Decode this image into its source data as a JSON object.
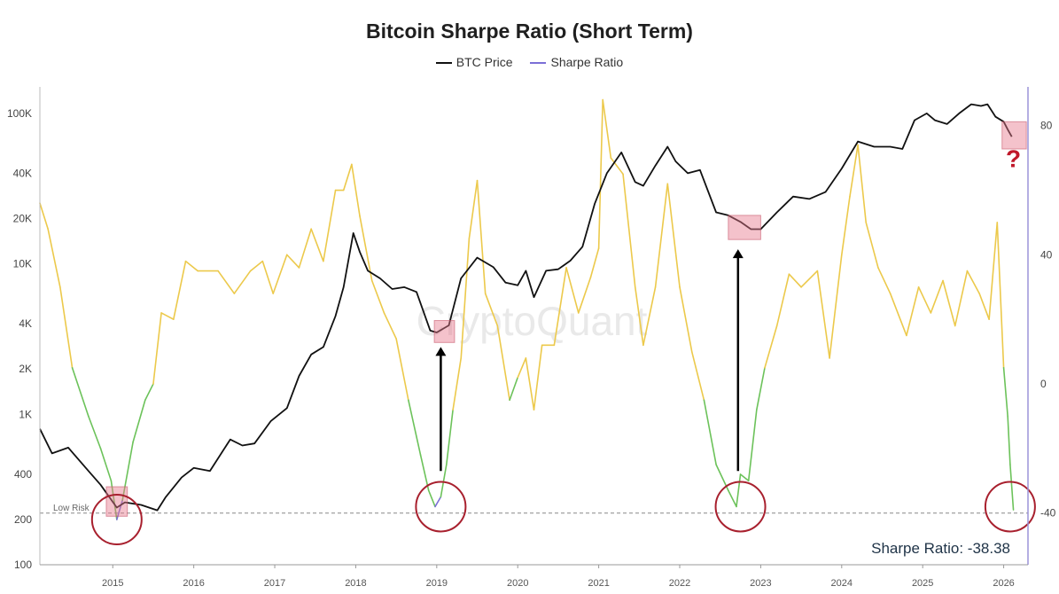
{
  "chart_data": {
    "type": "line",
    "title": "Bitcoin Sharpe Ratio (Short Term)",
    "legend": [
      {
        "name": "BTC Price",
        "color": "#111111"
      },
      {
        "name": "Sharpe Ratio",
        "color": "#7b6fd6"
      }
    ],
    "watermark": "CryptoQuant",
    "x_ticks": [
      "2015",
      "2016",
      "2017",
      "2018",
      "2019",
      "2020",
      "2021",
      "2022",
      "2023",
      "2024",
      "2025",
      "2026"
    ],
    "x_range": [
      2014.1,
      2026.3
    ],
    "y_left": {
      "scale": "log",
      "range": [
        100,
        150000
      ],
      "ticks": [
        100,
        200,
        400,
        1000,
        2000,
        4000,
        10000,
        20000,
        40000,
        100000
      ],
      "tick_labels": [
        "100",
        "200",
        "400",
        "1K",
        "2K",
        "4K",
        "10K",
        "20K",
        "40K",
        "100K"
      ]
    },
    "y_right": {
      "scale": "linear",
      "range": [
        -56,
        92
      ],
      "ticks": [
        80,
        40,
        0,
        -40
      ],
      "tick_labels": [
        "80",
        "40",
        "0",
        "-40"
      ]
    },
    "thresholds": {
      "low": 0,
      "high": 80
    },
    "colors": {
      "green": "#6cc25a",
      "yellow": "#ecc94b",
      "red": "#e06070",
      "purple": "#7b6fd6",
      "price": "#111111"
    },
    "low_risk": {
      "label": "Low Risk",
      "value": -40
    },
    "current_value_label": "Sharpe Ratio: -38.38",
    "question_mark": "?",
    "series": [
      {
        "name": "BTC Price",
        "axis": "left",
        "x": [
          2014.1,
          2014.25,
          2014.45,
          2014.7,
          2014.85,
          2015.05,
          2015.15,
          2015.35,
          2015.55,
          2015.65,
          2015.85,
          2016.0,
          2016.2,
          2016.45,
          2016.6,
          2016.75,
          2016.95,
          2017.15,
          2017.3,
          2017.45,
          2017.6,
          2017.75,
          2017.85,
          2017.97,
          2018.05,
          2018.15,
          2018.3,
          2018.45,
          2018.6,
          2018.75,
          2018.92,
          2019.0,
          2019.15,
          2019.3,
          2019.5,
          2019.7,
          2019.85,
          2020.0,
          2020.1,
          2020.2,
          2020.35,
          2020.5,
          2020.65,
          2020.8,
          2020.95,
          2021.1,
          2021.28,
          2021.45,
          2021.55,
          2021.7,
          2021.85,
          2021.95,
          2022.1,
          2022.25,
          2022.45,
          2022.6,
          2022.75,
          2022.88,
          2023.0,
          2023.2,
          2023.4,
          2023.6,
          2023.8,
          2024.0,
          2024.2,
          2024.4,
          2024.6,
          2024.75,
          2024.9,
          2025.05,
          2025.15,
          2025.3,
          2025.45,
          2025.6,
          2025.72,
          2025.8,
          2025.9,
          2026.0,
          2026.05,
          2026.1
        ],
        "values": [
          800,
          550,
          600,
          420,
          340,
          240,
          260,
          250,
          230,
          280,
          380,
          440,
          420,
          680,
          620,
          640,
          900,
          1100,
          1800,
          2500,
          2800,
          4500,
          7000,
          16000,
          12000,
          9000,
          8000,
          6800,
          7000,
          6500,
          3600,
          3500,
          3900,
          8000,
          11000,
          9500,
          7500,
          7200,
          9000,
          6000,
          9000,
          9200,
          10500,
          13000,
          25000,
          40000,
          55000,
          35000,
          33000,
          45000,
          60000,
          48000,
          40000,
          42000,
          22000,
          21000,
          19000,
          17000,
          17000,
          22000,
          28000,
          27000,
          30000,
          43000,
          65000,
          60000,
          60000,
          58000,
          90000,
          100000,
          90000,
          85000,
          100000,
          115000,
          112000,
          115000,
          95000,
          88000,
          78000,
          70000
        ]
      },
      {
        "name": "Sharpe Ratio",
        "axis": "right",
        "x": [
          2014.1,
          2014.2,
          2014.35,
          2014.5,
          2014.7,
          2014.85,
          2014.98,
          2015.05,
          2015.12,
          2015.25,
          2015.4,
          2015.5,
          2015.6,
          2015.75,
          2015.9,
          2016.05,
          2016.3,
          2016.5,
          2016.7,
          2016.85,
          2016.98,
          2017.15,
          2017.3,
          2017.45,
          2017.6,
          2017.75,
          2017.85,
          2017.95,
          2018.05,
          2018.2,
          2018.35,
          2018.5,
          2018.65,
          2018.8,
          2018.9,
          2018.98,
          2019.05,
          2019.12,
          2019.2,
          2019.3,
          2019.4,
          2019.5,
          2019.6,
          2019.75,
          2019.9,
          2020.0,
          2020.1,
          2020.2,
          2020.3,
          2020.45,
          2020.6,
          2020.75,
          2020.9,
          2021.0,
          2021.05,
          2021.15,
          2021.3,
          2021.45,
          2021.55,
          2021.7,
          2021.85,
          2022.0,
          2022.15,
          2022.3,
          2022.45,
          2022.6,
          2022.7,
          2022.75,
          2022.85,
          2022.95,
          2023.05,
          2023.2,
          2023.35,
          2023.5,
          2023.7,
          2023.85,
          2024.0,
          2024.1,
          2024.2,
          2024.3,
          2024.45,
          2024.6,
          2024.8,
          2024.95,
          2025.1,
          2025.25,
          2025.4,
          2025.55,
          2025.7,
          2025.82,
          2025.92,
          2026.0,
          2026.05,
          2026.08,
          2026.12
        ],
        "values": [
          56,
          48,
          30,
          5,
          -10,
          -20,
          -30,
          -42,
          -36,
          -18,
          -5,
          0,
          22,
          20,
          38,
          35,
          35,
          28,
          35,
          38,
          28,
          40,
          36,
          48,
          38,
          60,
          60,
          68,
          52,
          32,
          22,
          14,
          -5,
          -22,
          -33,
          -38,
          -35,
          -25,
          -8,
          8,
          45,
          63,
          28,
          18,
          -5,
          2,
          8,
          -8,
          12,
          12,
          36,
          22,
          33,
          42,
          88,
          70,
          65,
          30,
          12,
          30,
          62,
          30,
          10,
          -5,
          -25,
          -33,
          -38,
          -28,
          -30,
          -8,
          5,
          18,
          34,
          30,
          35,
          8,
          40,
          58,
          74,
          50,
          36,
          28,
          15,
          30,
          22,
          32,
          18,
          35,
          28,
          20,
          50,
          5,
          -10,
          -25,
          -39
        ]
      }
    ],
    "markers": {
      "circles": [
        {
          "x": 2015.05,
          "sharpe": -42
        },
        {
          "x": 2019.05,
          "sharpe": -38
        },
        {
          "x": 2022.75,
          "sharpe": -38
        },
        {
          "x": 2026.08,
          "sharpe": -38
        }
      ],
      "boxes": [
        {
          "x0": 2018.97,
          "x1": 2019.22,
          "p0": 3000,
          "p1": 4200
        },
        {
          "x0": 2022.6,
          "x1": 2023.0,
          "p0": 14500,
          "p1": 21000
        },
        {
          "x0": 2025.98,
          "x1": 2026.28,
          "p0": 58000,
          "p1": 88000
        },
        {
          "x0": 2014.92,
          "x1": 2015.18,
          "p0": 210,
          "p1": 330
        }
      ],
      "arrows": [
        {
          "x": 2019.05,
          "from_price": 420,
          "to_price": 2800
        },
        {
          "x": 2022.72,
          "from_price": 420,
          "to_price": 12500
        }
      ],
      "question_x": 2026.12,
      "question_price": 44000
    }
  }
}
